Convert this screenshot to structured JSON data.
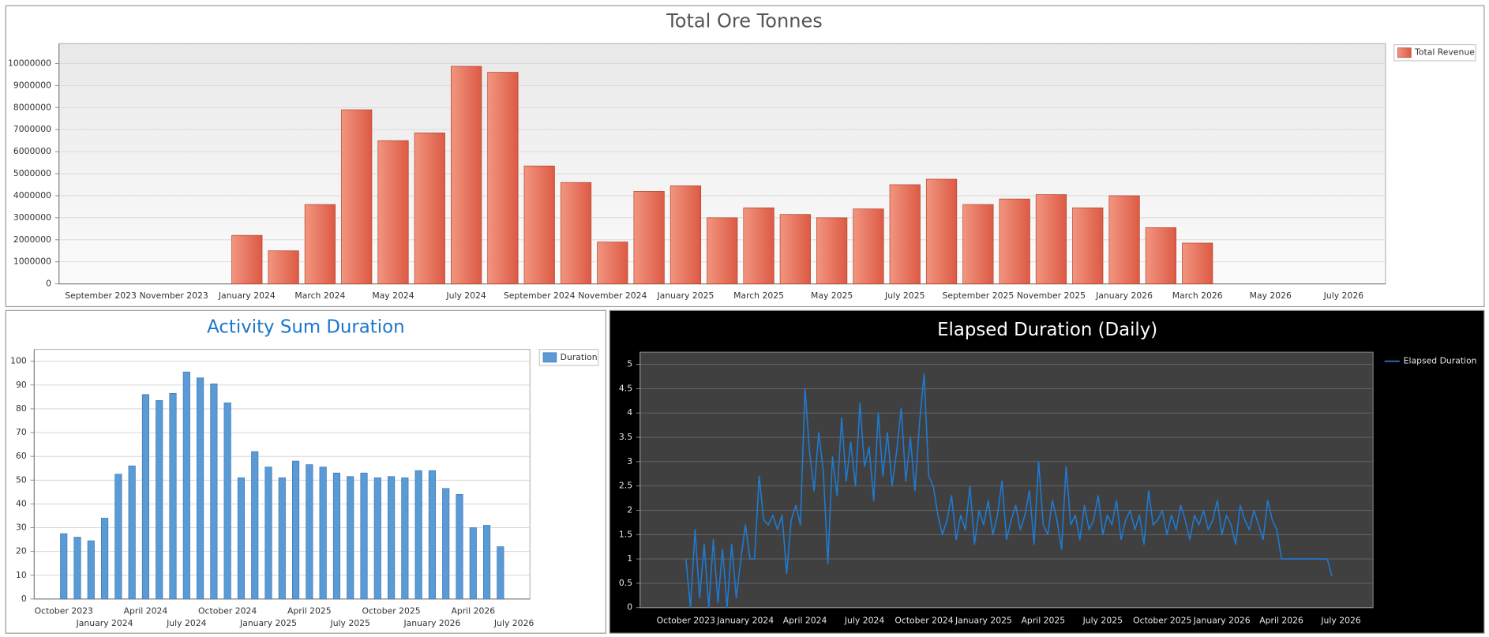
{
  "chart_data": [
    {
      "type": "bar",
      "title": "Total Ore Tonnes",
      "categories": [
        null,
        "September 2023",
        null,
        "November 2023",
        null,
        "January 2024",
        null,
        "March 2024",
        null,
        "May 2024",
        null,
        "July 2024",
        null,
        "September 2024",
        null,
        "November 2024",
        null,
        "January 2025",
        null,
        "March 2025",
        null,
        "May 2025",
        null,
        "July 2025",
        null,
        "September 2025",
        null,
        "November 2025",
        null,
        "January 2026",
        null,
        "March 2026",
        null,
        "May 2026",
        null,
        "July 2026",
        null
      ],
      "series": [
        {
          "name": "Total Revenue",
          "color": "#e8634d",
          "values": [
            null,
            null,
            null,
            null,
            null,
            2200000,
            1500000,
            3600000,
            7900000,
            6500000,
            6850000,
            9870000,
            9600000,
            5350000,
            4600000,
            1900000,
            4200000,
            4450000,
            3000000,
            3450000,
            3150000,
            3000000,
            3400000,
            4500000,
            4750000,
            3600000,
            3850000,
            4050000,
            3450000,
            4000000,
            2550000,
            1850000,
            null,
            null,
            null,
            null,
            null
          ]
        }
      ],
      "ylim": [
        0,
        10900000
      ],
      "yticks": [
        0,
        1000000,
        2000000,
        3000000,
        4000000,
        5000000,
        6000000,
        7000000,
        8000000,
        9000000,
        10000000
      ],
      "grid": true,
      "legend": "right"
    },
    {
      "type": "bar",
      "title": "Activity Sum Duration",
      "categories": [
        null,
        null,
        "October 2023",
        null,
        null,
        "January 2024",
        null,
        null,
        "April 2024",
        null,
        null,
        "July 2024",
        null,
        null,
        "October 2024",
        null,
        null,
        "January 2025",
        null,
        null,
        "April 2025",
        null,
        null,
        "July 2025",
        null,
        null,
        "October 2025",
        null,
        null,
        "January 2026",
        null,
        null,
        "April 2026",
        null,
        null,
        "July 2026",
        null
      ],
      "series": [
        {
          "name": "Duration",
          "color": "#5b9bd5",
          "values": [
            null,
            null,
            27.5,
            26,
            24.5,
            34,
            52.5,
            56,
            86,
            83.5,
            86.5,
            95.5,
            93,
            90.5,
            82.5,
            51,
            62,
            55.5,
            51,
            58,
            56.5,
            55.5,
            53,
            51.5,
            53,
            51,
            51.5,
            51,
            54,
            54,
            46.5,
            44,
            30,
            31,
            22,
            null,
            null
          ]
        }
      ],
      "ylim": [
        0,
        105
      ],
      "yticks": [
        0,
        10,
        20,
        30,
        40,
        50,
        60,
        70,
        80,
        90,
        100
      ],
      "grid": true,
      "legend": "right"
    },
    {
      "type": "line",
      "title": "Elapsed Duration (Daily)",
      "categories": [
        null,
        null,
        null,
        null,
        null,
        null,
        null,
        null,
        null,
        null,
        "October 2023",
        null,
        null,
        null,
        null,
        null,
        null,
        null,
        null,
        null,
        null,
        null,
        null,
        "January 2024",
        null,
        null,
        null,
        null,
        null,
        null,
        null,
        null,
        null,
        null,
        null,
        null,
        "April 2024",
        null,
        null,
        null,
        null,
        null,
        null,
        null,
        null,
        null,
        null,
        null,
        null,
        "July 2024",
        null,
        null,
        null,
        null,
        null,
        null,
        null,
        null,
        null,
        null,
        null,
        null,
        "October 2024",
        null,
        null,
        null,
        null,
        null,
        null,
        null,
        null,
        null,
        null,
        null,
        null,
        "January 2025",
        null,
        null,
        null,
        null,
        null,
        null,
        null,
        null,
        null,
        null,
        null,
        null,
        "April 2025",
        null,
        null,
        null,
        null,
        null,
        null,
        null,
        null,
        null,
        null,
        null,
        null,
        "July 2025",
        null,
        null,
        null,
        null,
        null,
        null,
        null,
        null,
        null,
        null,
        null,
        null,
        "October 2025",
        null,
        null,
        null,
        null,
        null,
        null,
        null,
        null,
        null,
        null,
        null,
        null,
        "January 2026",
        null,
        null,
        null,
        null,
        null,
        null,
        null,
        null,
        null,
        null,
        null,
        null,
        "April 2026",
        null,
        null,
        null,
        null,
        null,
        null,
        null,
        null,
        null,
        null,
        null,
        null,
        "July 2026",
        null,
        null,
        null,
        null,
        null,
        null,
        null
      ],
      "series": [
        {
          "name": "Elapsed Duration",
          "color": "#1e7bd4",
          "values": [
            null,
            null,
            null,
            null,
            null,
            null,
            null,
            null,
            null,
            null,
            1,
            0,
            1.6,
            0.2,
            1.3,
            0,
            1.4,
            0.1,
            1.2,
            0,
            1.3,
            0.2,
            1,
            1.7,
            1,
            1,
            2.7,
            1.8,
            1.7,
            1.9,
            1.6,
            1.9,
            0.7,
            1.8,
            2.1,
            1.7,
            4.5,
            3.2,
            2.4,
            3.6,
            2.8,
            0.9,
            3.1,
            2.3,
            3.9,
            2.6,
            3.4,
            2.5,
            4.2,
            2.9,
            3.3,
            2.2,
            4,
            2.7,
            3.6,
            2.5,
            3.2,
            4.1,
            2.6,
            3.5,
            2.4,
            3.8,
            4.8,
            2.7,
            2.5,
            1.9,
            1.5,
            1.8,
            2.3,
            1.4,
            1.9,
            1.6,
            2.5,
            1.3,
            2,
            1.7,
            2.2,
            1.5,
            1.9,
            2.6,
            1.4,
            1.8,
            2.1,
            1.6,
            1.9,
            2.4,
            1.3,
            3,
            1.7,
            1.5,
            2.2,
            1.8,
            1.2,
            2.9,
            1.7,
            1.9,
            1.4,
            2.1,
            1.6,
            1.8,
            2.3,
            1.5,
            1.9,
            1.7,
            2.2,
            1.4,
            1.8,
            2,
            1.6,
            1.9,
            1.3,
            2.4,
            1.7,
            1.8,
            2,
            1.5,
            1.9,
            1.6,
            2.1,
            1.8,
            1.4,
            1.9,
            1.7,
            2,
            1.6,
            1.8,
            2.2,
            1.5,
            1.9,
            1.7,
            1.3,
            2.1,
            1.8,
            1.6,
            2,
            1.7,
            1.4,
            2.2,
            1.8,
            1.6,
            1,
            1,
            1,
            1,
            1,
            1,
            1,
            1,
            1,
            1,
            1,
            0.65,
            null,
            null,
            null,
            null,
            null,
            null,
            null,
            null,
            null
          ]
        }
      ],
      "ylim": [
        0,
        5.25
      ],
      "yticks": [
        0,
        0.5,
        1,
        1.5,
        2,
        2.5,
        3,
        3.5,
        4,
        4.5,
        5
      ],
      "grid": true,
      "legend": "right"
    }
  ]
}
